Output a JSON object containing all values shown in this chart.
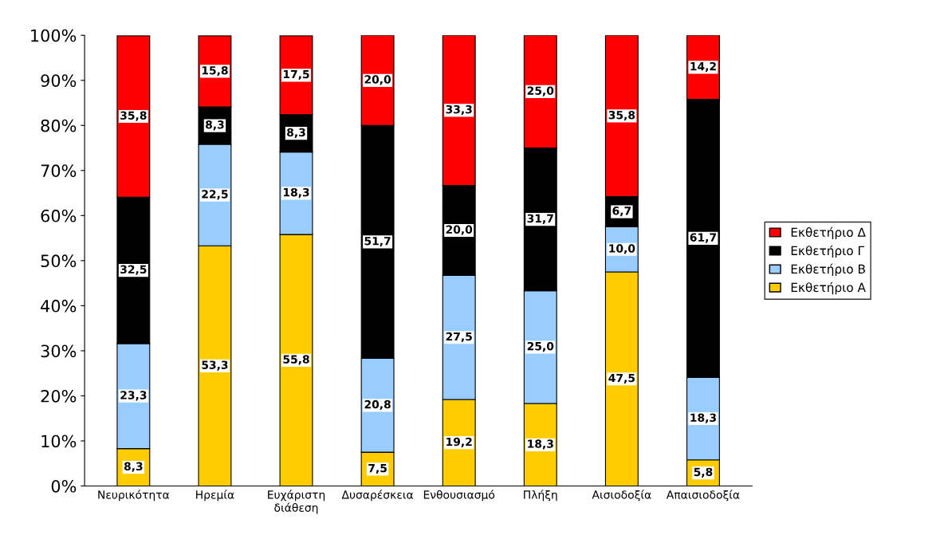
{
  "chart_data": {
    "type": "bar",
    "stacked": true,
    "categories": [
      "Νευρικότητα",
      "Ηρεμία",
      "Ευχάριστη\nδιάθεση",
      "Δυσαρέσκεια",
      "Ενθουσιασμό",
      "Πλήξη",
      "Αισιοδοξία",
      "Απαισιοδοξία"
    ],
    "series": [
      {
        "name": "Εκθετήριο Α",
        "color": "#ffcc00",
        "values": [
          8.3,
          53.3,
          55.8,
          7.5,
          19.2,
          18.3,
          47.5,
          5.8
        ],
        "value_labels": [
          "8,3",
          "53,3",
          "55,8",
          "7,5",
          "19,2",
          "18,3",
          "47,5",
          "5,8"
        ]
      },
      {
        "name": "Εκθετήριο Β",
        "color": "#99ccff",
        "values": [
          23.3,
          22.5,
          18.3,
          20.8,
          27.5,
          25.0,
          10.0,
          18.3
        ],
        "value_labels": [
          "23,3",
          "22,5",
          "18,3",
          "20,8",
          "27,5",
          "25,0",
          "10,0",
          "18,3"
        ]
      },
      {
        "name": "Εκθετήριο Γ",
        "color": "#000000",
        "values": [
          32.5,
          8.3,
          8.3,
          51.7,
          20.0,
          31.7,
          6.7,
          61.7
        ],
        "value_labels": [
          "32,5",
          "8,3",
          "8,3",
          "51,7",
          "20,0",
          "31,7",
          "6,7",
          "61,7"
        ]
      },
      {
        "name": "Εκθετήριο Δ",
        "color": "#ff0000",
        "values": [
          35.8,
          15.8,
          17.5,
          20.0,
          33.3,
          25.0,
          35.8,
          14.2
        ],
        "value_labels": [
          "35,8",
          "15,8",
          "17,5",
          "20,0",
          "33,3",
          "25,0",
          "35,8",
          "14,2"
        ]
      }
    ],
    "ylim": [
      0,
      100
    ],
    "yticks": [
      {
        "value": 0,
        "label": "0%"
      },
      {
        "value": 10,
        "label": "10%"
      },
      {
        "value": 20,
        "label": "20%"
      },
      {
        "value": 30,
        "label": "30%"
      },
      {
        "value": 40,
        "label": "40%"
      },
      {
        "value": 50,
        "label": "50%"
      },
      {
        "value": 60,
        "label": "60%"
      },
      {
        "value": 70,
        "label": "70%"
      },
      {
        "value": 80,
        "label": "80%"
      },
      {
        "value": 90,
        "label": "90%"
      },
      {
        "value": 100,
        "label": "100%"
      }
    ],
    "grid": false,
    "legend": "right"
  }
}
